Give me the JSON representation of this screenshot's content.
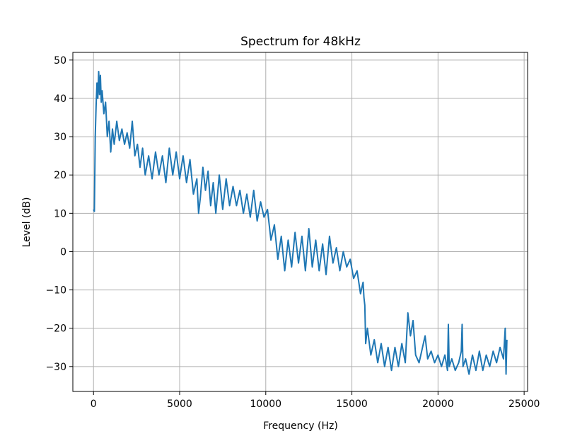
{
  "chart_data": {
    "type": "line",
    "title": "Spectrum for 48kHz",
    "x_label": "Frequency (Hz)",
    "y_label": "Level (dB)",
    "x": [
      0,
      50,
      100,
      150,
      200,
      250,
      300,
      350,
      400,
      450,
      500,
      600,
      700,
      800,
      900,
      1000,
      1100,
      1200,
      1350,
      1500,
      1650,
      1800,
      1950,
      2100,
      2250,
      2400,
      2550,
      2700,
      2850,
      3000,
      3200,
      3400,
      3600,
      3800,
      4000,
      4200,
      4400,
      4600,
      4800,
      5000,
      5200,
      5400,
      5600,
      5800,
      6000,
      6100,
      6200,
      6350,
      6500,
      6650,
      6800,
      6950,
      7100,
      7300,
      7500,
      7700,
      7900,
      8100,
      8300,
      8500,
      8700,
      8900,
      9100,
      9300,
      9500,
      9700,
      9900,
      10100,
      10300,
      10500,
      10700,
      10900,
      11100,
      11300,
      11500,
      11700,
      11900,
      12100,
      12300,
      12500,
      12700,
      12900,
      13100,
      13300,
      13500,
      13700,
      13900,
      14100,
      14300,
      14500,
      14700,
      14900,
      15100,
      15300,
      15500,
      15650,
      15700,
      15750,
      15800,
      15900,
      16100,
      16300,
      16500,
      16700,
      16900,
      17100,
      17300,
      17500,
      17700,
      17900,
      18100,
      18250,
      18400,
      18550,
      18700,
      18900,
      19100,
      19250,
      19400,
      19600,
      19800,
      20000,
      20200,
      20400,
      20550,
      20600,
      20650,
      20800,
      21000,
      21200,
      21350,
      21400,
      21450,
      21600,
      21800,
      22000,
      22200,
      22400,
      22600,
      22800,
      23000,
      23200,
      23400,
      23600,
      23800,
      23900,
      23950,
      24000
    ],
    "values": [
      11,
      10.5,
      30,
      38,
      44,
      40,
      47,
      41,
      46,
      39,
      42,
      36,
      39,
      30,
      34,
      26,
      32,
      28,
      34,
      29,
      32,
      28,
      31,
      27,
      34,
      25,
      28,
      22,
      27,
      20,
      25,
      19,
      26,
      20,
      25,
      18,
      27,
      20,
      26,
      19,
      25,
      18,
      24,
      15,
      19,
      10,
      14,
      22,
      16,
      21,
      12,
      18,
      10,
      20,
      11,
      19,
      12,
      17,
      12,
      16,
      10,
      15,
      9,
      16,
      8,
      13,
      9,
      11,
      3,
      7,
      -2,
      4,
      -5,
      3,
      -4,
      5,
      -3,
      4,
      -5,
      6,
      -4,
      3,
      -5,
      2,
      -6,
      4,
      -3,
      1,
      -5,
      0,
      -4,
      -2,
      -7,
      -5,
      -11,
      -8,
      -12,
      -14,
      -24,
      -20,
      -27,
      -23,
      -29,
      -24,
      -30,
      -25,
      -31,
      -25,
      -30,
      -24,
      -29,
      -16,
      -22,
      -18,
      -27,
      -29,
      -25,
      -22,
      -28,
      -26,
      -29,
      -27,
      -30,
      -27,
      -31,
      -19,
      -30,
      -28,
      -31,
      -29,
      -26,
      -19,
      -30,
      -28,
      -32,
      -27,
      -31,
      -26,
      -31,
      -27,
      -30,
      -26,
      -29,
      -25,
      -28,
      -20,
      -32,
      -23
    ],
    "color": "#1f77b4",
    "xlim": [
      -1200,
      25200
    ],
    "ylim": [
      -36.5,
      52
    ],
    "xticks": [
      0,
      5000,
      10000,
      15000,
      20000,
      25000
    ],
    "yticks": [
      {
        "value": -30,
        "label": "−30"
      },
      {
        "value": -20,
        "label": "−20"
      },
      {
        "value": -10,
        "label": "−10"
      },
      0,
      10,
      20,
      30,
      40,
      50
    ],
    "grid": true
  }
}
